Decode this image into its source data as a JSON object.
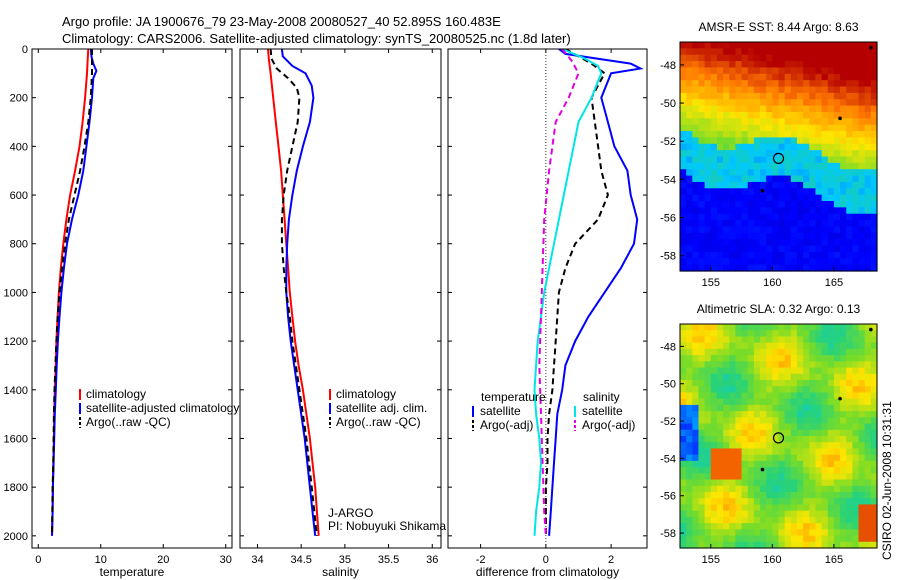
{
  "header": {
    "line1": "Argo profile: JA 1900676_79 23-May-2008 20080527_40 52.895S 160.483E",
    "line2": "Climatology: CARS2006. Satellite-adjusted climatology: synTS_20080525.nc (1.8d later)"
  },
  "footer": {
    "jargo": "J-ARGO",
    "pi": "PI: Nobuyuki Shikama",
    "stamp": "CSIRO 02-Jun-2008 10:31:31"
  },
  "colors": {
    "climatology": "#ff0000",
    "satellite": "#0000ff",
    "argo": "#000000",
    "temp_diff_sat": "#0000ff",
    "sal_diff_sat": "#00e5e5",
    "sal_diff_argo": "#e000e0"
  },
  "chart_data": [
    {
      "type": "line",
      "panel": "temperature",
      "xlabel": "temperature",
      "ylabel": "",
      "xlim": [
        -1,
        31
      ],
      "ylim": [
        0,
        2050
      ],
      "y_reversed": true,
      "xticks": [
        0,
        10,
        20,
        30
      ],
      "yticks": [
        0,
        200,
        400,
        600,
        800,
        1000,
        1200,
        1400,
        1600,
        1800,
        2000
      ],
      "legend": [
        "climatology",
        "satellite-adjusted climatology",
        "Argo(..raw -QC)"
      ],
      "series": [
        {
          "name": "climatology",
          "color": "#ff0000",
          "dash": false,
          "points": [
            [
              8.0,
              0
            ],
            [
              7.9,
              50
            ],
            [
              7.8,
              100
            ],
            [
              7.5,
              200
            ],
            [
              7.1,
              300
            ],
            [
              6.6,
              400
            ],
            [
              5.9,
              500
            ],
            [
              5.1,
              600
            ],
            [
              4.5,
              700
            ],
            [
              4.0,
              800
            ],
            [
              3.6,
              900
            ],
            [
              3.3,
              1000
            ],
            [
              3.1,
              1100
            ],
            [
              2.9,
              1200
            ],
            [
              2.8,
              1300
            ],
            [
              2.65,
              1400
            ],
            [
              2.55,
              1500
            ],
            [
              2.5,
              1600
            ],
            [
              2.4,
              1700
            ],
            [
              2.35,
              1800
            ],
            [
              2.3,
              1900
            ],
            [
              2.2,
              2000
            ]
          ]
        },
        {
          "name": "satellite-adjusted climatology",
          "color": "#0000ff",
          "dash": false,
          "points": [
            [
              8.4,
              0
            ],
            [
              8.5,
              30
            ],
            [
              8.8,
              60
            ],
            [
              9.3,
              90
            ],
            [
              8.8,
              120
            ],
            [
              8.6,
              200
            ],
            [
              8.2,
              300
            ],
            [
              7.7,
              400
            ],
            [
              7.2,
              500
            ],
            [
              6.4,
              600
            ],
            [
              5.4,
              700
            ],
            [
              4.6,
              800
            ],
            [
              4.1,
              900
            ],
            [
              3.7,
              1000
            ],
            [
              3.4,
              1100
            ],
            [
              3.15,
              1200
            ],
            [
              2.95,
              1300
            ],
            [
              2.8,
              1400
            ],
            [
              2.65,
              1500
            ],
            [
              2.55,
              1600
            ],
            [
              2.45,
              1700
            ],
            [
              2.35,
              1800
            ],
            [
              2.3,
              1900
            ],
            [
              2.2,
              2000
            ]
          ]
        },
        {
          "name": "Argo(..raw -QC)",
          "color": "#000000",
          "dash": true,
          "points": [
            [
              8.6,
              0
            ],
            [
              8.6,
              50
            ],
            [
              8.6,
              100
            ],
            [
              8.4,
              200
            ],
            [
              8.0,
              300
            ],
            [
              7.4,
              400
            ],
            [
              6.7,
              500
            ],
            [
              5.8,
              600
            ],
            [
              4.9,
              700
            ],
            [
              4.3,
              800
            ],
            [
              3.8,
              900
            ],
            [
              3.4,
              1000
            ],
            [
              3.1,
              1100
            ],
            [
              2.9,
              1200
            ],
            [
              2.75,
              1300
            ],
            [
              2.6,
              1400
            ],
            [
              2.5,
              1500
            ],
            [
              2.45,
              1600
            ],
            [
              2.4,
              1700
            ],
            [
              2.3,
              1800
            ],
            [
              2.25,
              1900
            ],
            [
              2.2,
              2000
            ]
          ]
        }
      ]
    },
    {
      "type": "line",
      "panel": "salinity",
      "xlabel": "salinity",
      "ylabel": "",
      "xlim": [
        33.8,
        36.1
      ],
      "ylim": [
        0,
        2050
      ],
      "y_reversed": true,
      "xticks": [
        34,
        34.5,
        35,
        35.5,
        36
      ],
      "legend": [
        "climatology",
        "satellite adj. clim.",
        "Argo(..raw -QC)"
      ],
      "series": [
        {
          "name": "climatology",
          "color": "#ff0000",
          "dash": false,
          "points": [
            [
              34.12,
              0
            ],
            [
              34.13,
              40
            ],
            [
              34.15,
              100
            ],
            [
              34.18,
              200
            ],
            [
              34.21,
              300
            ],
            [
              34.24,
              400
            ],
            [
              34.27,
              500
            ],
            [
              34.29,
              600
            ],
            [
              34.31,
              700
            ],
            [
              34.33,
              800
            ],
            [
              34.35,
              900
            ],
            [
              34.37,
              1000
            ],
            [
              34.4,
              1100
            ],
            [
              34.43,
              1200
            ],
            [
              34.47,
              1300
            ],
            [
              34.52,
              1400
            ],
            [
              34.56,
              1500
            ],
            [
              34.6,
              1600
            ],
            [
              34.63,
              1700
            ],
            [
              34.66,
              1800
            ],
            [
              34.68,
              1900
            ],
            [
              34.7,
              2000
            ]
          ]
        },
        {
          "name": "satellite adj. clim.",
          "color": "#0000ff",
          "dash": false,
          "points": [
            [
              34.28,
              0
            ],
            [
              34.29,
              30
            ],
            [
              34.4,
              70
            ],
            [
              34.55,
              100
            ],
            [
              34.62,
              150
            ],
            [
              34.64,
              200
            ],
            [
              34.6,
              300
            ],
            [
              34.52,
              400
            ],
            [
              34.45,
              500
            ],
            [
              34.4,
              600
            ],
            [
              34.36,
              700
            ],
            [
              34.34,
              800
            ],
            [
              34.33,
              900
            ],
            [
              34.33,
              1000
            ],
            [
              34.35,
              1100
            ],
            [
              34.38,
              1200
            ],
            [
              34.42,
              1300
            ],
            [
              34.46,
              1400
            ],
            [
              34.5,
              1500
            ],
            [
              34.54,
              1600
            ],
            [
              34.57,
              1700
            ],
            [
              34.6,
              1800
            ],
            [
              34.63,
              1900
            ],
            [
              34.66,
              2000
            ]
          ]
        },
        {
          "name": "Argo(..raw -QC)",
          "color": "#000000",
          "dash": true,
          "points": [
            [
              34.15,
              0
            ],
            [
              34.16,
              40
            ],
            [
              34.22,
              80
            ],
            [
              34.35,
              120
            ],
            [
              34.45,
              160
            ],
            [
              34.48,
              200
            ],
            [
              34.46,
              300
            ],
            [
              34.4,
              400
            ],
            [
              34.34,
              500
            ],
            [
              34.3,
              600
            ],
            [
              34.28,
              700
            ],
            [
              34.28,
              800
            ],
            [
              34.3,
              900
            ],
            [
              34.33,
              1000
            ],
            [
              34.37,
              1100
            ],
            [
              34.4,
              1200
            ],
            [
              34.44,
              1300
            ],
            [
              34.48,
              1400
            ],
            [
              34.52,
              1500
            ],
            [
              34.56,
              1600
            ],
            [
              34.59,
              1700
            ],
            [
              34.62,
              1800
            ],
            [
              34.65,
              1900
            ],
            [
              34.68,
              2000
            ]
          ]
        }
      ]
    },
    {
      "type": "line",
      "panel": "difference",
      "xlabel": "difference from climatology",
      "ylabel": "",
      "xlim": [
        -3,
        3.1
      ],
      "ylim": [
        0,
        2050
      ],
      "y_reversed": true,
      "xticks": [
        -2,
        0,
        2
      ],
      "legend_titles": [
        "temperature",
        "salinity"
      ],
      "legend": [
        "satellite",
        "Argo(-adj)",
        "satellite",
        "Argo(-adj)"
      ],
      "series": [
        {
          "name": "satellite",
          "group": "temperature",
          "color": "#0000ff",
          "dash": false,
          "points": [
            [
              0.4,
              0
            ],
            [
              0.6,
              20
            ],
            [
              2.6,
              60
            ],
            [
              2.9,
              80
            ],
            [
              2.0,
              100
            ],
            [
              1.7,
              200
            ],
            [
              1.9,
              300
            ],
            [
              2.1,
              400
            ],
            [
              2.5,
              500
            ],
            [
              2.6,
              600
            ],
            [
              2.8,
              700
            ],
            [
              2.7,
              800
            ],
            [
              2.3,
              900
            ],
            [
              1.8,
              1000
            ],
            [
              1.3,
              1100
            ],
            [
              0.9,
              1200
            ],
            [
              0.6,
              1300
            ],
            [
              0.5,
              1400
            ],
            [
              0.35,
              1500
            ],
            [
              0.3,
              1600
            ],
            [
              0.25,
              1700
            ],
            [
              0.2,
              1800
            ],
            [
              0.15,
              1900
            ],
            [
              0.1,
              2000
            ]
          ]
        },
        {
          "name": "Argo(-adj)",
          "group": "temperature",
          "color": "#000000",
          "dash": true,
          "points": [
            [
              0.6,
              0
            ],
            [
              1.4,
              60
            ],
            [
              1.8,
              100
            ],
            [
              1.4,
              200
            ],
            [
              1.5,
              300
            ],
            [
              1.6,
              400
            ],
            [
              1.7,
              500
            ],
            [
              1.9,
              600
            ],
            [
              1.6,
              700
            ],
            [
              0.9,
              800
            ],
            [
              0.6,
              900
            ],
            [
              0.4,
              1000
            ],
            [
              0.35,
              1100
            ],
            [
              0.3,
              1200
            ],
            [
              0.25,
              1300
            ],
            [
              0.2,
              1400
            ],
            [
              0.1,
              1500
            ],
            [
              0.05,
              1600
            ],
            [
              0.05,
              1700
            ],
            [
              0.0,
              1800
            ],
            [
              0.0,
              1900
            ],
            [
              0.0,
              2000
            ]
          ]
        },
        {
          "name": "satellite",
          "group": "salinity",
          "color": "#00e5e5",
          "dash": false,
          "points": [
            [
              0.5,
              0
            ],
            [
              1.2,
              40
            ],
            [
              1.6,
              70
            ],
            [
              1.7,
              100
            ],
            [
              1.4,
              200
            ],
            [
              1.0,
              300
            ],
            [
              0.85,
              400
            ],
            [
              0.7,
              500
            ],
            [
              0.55,
              600
            ],
            [
              0.4,
              700
            ],
            [
              0.25,
              800
            ],
            [
              0.1,
              900
            ],
            [
              -0.05,
              1000
            ],
            [
              -0.15,
              1100
            ],
            [
              -0.25,
              1200
            ],
            [
              -0.3,
              1300
            ],
            [
              -0.35,
              1400
            ],
            [
              -0.3,
              1500
            ],
            [
              -0.2,
              1600
            ],
            [
              -0.15,
              1700
            ],
            [
              -0.2,
              1800
            ],
            [
              -0.3,
              1900
            ],
            [
              -0.35,
              2000
            ]
          ]
        },
        {
          "name": "Argo(-adj)",
          "group": "salinity",
          "color": "#e000e0",
          "dash": true,
          "points": [
            [
              0.5,
              0
            ],
            [
              0.8,
              50
            ],
            [
              1.0,
              100
            ],
            [
              0.7,
              200
            ],
            [
              0.3,
              300
            ],
            [
              0.1,
              500
            ],
            [
              -0.05,
              700
            ],
            [
              -0.1,
              900
            ],
            [
              -0.15,
              1100
            ],
            [
              -0.2,
              1300
            ],
            [
              -0.15,
              1500
            ],
            [
              -0.1,
              1700
            ],
            [
              -0.05,
              1900
            ],
            [
              0.0,
              2000
            ]
          ]
        }
      ]
    },
    {
      "type": "heatmap",
      "panel": "sst_map",
      "title": "AMSR-E SST: 8.44 Argo: 8.63",
      "xticks": [
        155,
        160,
        165
      ],
      "yticks": [
        -48,
        -50,
        -52,
        -54,
        -56,
        -58
      ],
      "xlim": [
        152.5,
        168.5
      ],
      "ylim": [
        -58.8,
        -46.8
      ],
      "argo_position": [
        160.5,
        -52.9
      ]
    },
    {
      "type": "heatmap",
      "panel": "sla_map",
      "title": "Altimetric SLA: 0.32 Argo: 0.13",
      "xticks": [
        155,
        160,
        165
      ],
      "yticks": [
        -48,
        -50,
        -52,
        -54,
        -56,
        -58
      ],
      "xlim": [
        152.5,
        168.5
      ],
      "ylim": [
        -58.8,
        -46.8
      ],
      "argo_position": [
        160.5,
        -52.9
      ]
    }
  ]
}
